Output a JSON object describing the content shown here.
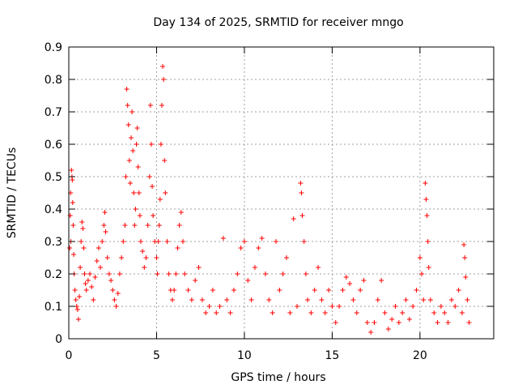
{
  "chart_data": {
    "type": "scatter",
    "title": "Day 134 of 2025, SRMTID for receiver mngo",
    "xlabel": "GPS time / hours",
    "ylabel": "SRMTID / TECUs",
    "xlim": [
      0,
      24.2
    ],
    "ylim": [
      0,
      0.9
    ],
    "x_ticks": [
      0,
      5,
      10,
      15,
      20
    ],
    "x_tick_labels": [
      "0",
      "5",
      "10",
      "15",
      "20"
    ],
    "y_ticks": [
      0,
      0.1,
      0.2,
      0.3,
      0.4,
      0.5,
      0.6,
      0.7,
      0.8,
      0.9
    ],
    "y_tick_labels": [
      "0",
      "0.1",
      "0.2",
      "0.3",
      "0.4",
      "0.5",
      "0.6",
      "0.7",
      "0.8",
      "0.9"
    ],
    "grid": true,
    "marker": "+",
    "color": "#ff0000",
    "series": [
      {
        "name": "SRMTID",
        "points": [
          [
            0.05,
            0.28
          ],
          [
            0.08,
            0.38
          ],
          [
            0.1,
            0.45
          ],
          [
            0.12,
            0.3
          ],
          [
            0.15,
            0.52
          ],
          [
            0.18,
            0.5
          ],
          [
            0.2,
            0.49
          ],
          [
            0.22,
            0.42
          ],
          [
            0.25,
            0.35
          ],
          [
            0.28,
            0.26
          ],
          [
            0.3,
            0.2
          ],
          [
            0.35,
            0.15
          ],
          [
            0.4,
            0.12
          ],
          [
            0.45,
            0.1
          ],
          [
            0.5,
            0.09
          ],
          [
            0.55,
            0.06
          ],
          [
            0.6,
            0.13
          ],
          [
            0.65,
            0.22
          ],
          [
            0.7,
            0.3
          ],
          [
            0.75,
            0.36
          ],
          [
            0.8,
            0.34
          ],
          [
            0.85,
            0.28
          ],
          [
            0.9,
            0.2
          ],
          [
            0.95,
            0.17
          ],
          [
            1.0,
            0.15
          ],
          [
            1.1,
            0.18
          ],
          [
            1.2,
            0.2
          ],
          [
            1.3,
            0.16
          ],
          [
            1.4,
            0.12
          ],
          [
            1.5,
            0.19
          ],
          [
            1.6,
            0.24
          ],
          [
            1.7,
            0.28
          ],
          [
            1.8,
            0.22
          ],
          [
            1.9,
            0.3
          ],
          [
            2.0,
            0.35
          ],
          [
            2.05,
            0.39
          ],
          [
            2.1,
            0.33
          ],
          [
            2.2,
            0.25
          ],
          [
            2.3,
            0.2
          ],
          [
            2.4,
            0.18
          ],
          [
            2.5,
            0.15
          ],
          [
            2.6,
            0.12
          ],
          [
            2.7,
            0.1
          ],
          [
            2.8,
            0.14
          ],
          [
            2.9,
            0.2
          ],
          [
            3.0,
            0.25
          ],
          [
            3.1,
            0.3
          ],
          [
            3.2,
            0.35
          ],
          [
            3.25,
            0.5
          ],
          [
            3.3,
            0.77
          ],
          [
            3.35,
            0.72
          ],
          [
            3.4,
            0.66
          ],
          [
            3.45,
            0.55
          ],
          [
            3.5,
            0.48
          ],
          [
            3.55,
            0.62
          ],
          [
            3.6,
            0.7
          ],
          [
            3.65,
            0.58
          ],
          [
            3.7,
            0.45
          ],
          [
            3.75,
            0.35
          ],
          [
            3.8,
            0.4
          ],
          [
            3.85,
            0.6
          ],
          [
            3.9,
            0.65
          ],
          [
            3.95,
            0.53
          ],
          [
            4.0,
            0.45
          ],
          [
            4.05,
            0.38
          ],
          [
            4.1,
            0.3
          ],
          [
            4.2,
            0.27
          ],
          [
            4.3,
            0.22
          ],
          [
            4.4,
            0.25
          ],
          [
            4.5,
            0.35
          ],
          [
            4.6,
            0.5
          ],
          [
            4.65,
            0.72
          ],
          [
            4.7,
            0.6
          ],
          [
            4.75,
            0.47
          ],
          [
            4.8,
            0.38
          ],
          [
            4.9,
            0.3
          ],
          [
            5.0,
            0.25
          ],
          [
            5.05,
            0.2
          ],
          [
            5.1,
            0.3
          ],
          [
            5.15,
            0.35
          ],
          [
            5.2,
            0.43
          ],
          [
            5.25,
            0.6
          ],
          [
            5.3,
            0.72
          ],
          [
            5.35,
            0.84
          ],
          [
            5.4,
            0.8
          ],
          [
            5.45,
            0.55
          ],
          [
            5.5,
            0.45
          ],
          [
            5.6,
            0.3
          ],
          [
            5.7,
            0.2
          ],
          [
            5.8,
            0.15
          ],
          [
            5.9,
            0.12
          ],
          [
            6.0,
            0.15
          ],
          [
            6.1,
            0.2
          ],
          [
            6.2,
            0.28
          ],
          [
            6.3,
            0.35
          ],
          [
            6.4,
            0.39
          ],
          [
            6.5,
            0.3
          ],
          [
            6.6,
            0.2
          ],
          [
            6.8,
            0.15
          ],
          [
            7.0,
            0.12
          ],
          [
            7.2,
            0.18
          ],
          [
            7.4,
            0.22
          ],
          [
            7.6,
            0.12
          ],
          [
            7.8,
            0.08
          ],
          [
            8.0,
            0.1
          ],
          [
            8.2,
            0.15
          ],
          [
            8.4,
            0.08
          ],
          [
            8.6,
            0.1
          ],
          [
            8.8,
            0.31
          ],
          [
            9.0,
            0.12
          ],
          [
            9.2,
            0.08
          ],
          [
            9.4,
            0.15
          ],
          [
            9.6,
            0.2
          ],
          [
            9.8,
            0.28
          ],
          [
            10.0,
            0.3
          ],
          [
            10.2,
            0.18
          ],
          [
            10.4,
            0.12
          ],
          [
            10.6,
            0.22
          ],
          [
            10.8,
            0.28
          ],
          [
            11.0,
            0.31
          ],
          [
            11.2,
            0.2
          ],
          [
            11.4,
            0.12
          ],
          [
            11.6,
            0.08
          ],
          [
            11.8,
            0.3
          ],
          [
            12.0,
            0.15
          ],
          [
            12.2,
            0.2
          ],
          [
            12.4,
            0.25
          ],
          [
            12.6,
            0.08
          ],
          [
            12.8,
            0.37
          ],
          [
            13.0,
            0.1
          ],
          [
            13.2,
            0.48
          ],
          [
            13.25,
            0.45
          ],
          [
            13.3,
            0.38
          ],
          [
            13.4,
            0.3
          ],
          [
            13.5,
            0.2
          ],
          [
            13.6,
            0.12
          ],
          [
            13.8,
            0.08
          ],
          [
            14.0,
            0.15
          ],
          [
            14.2,
            0.22
          ],
          [
            14.4,
            0.12
          ],
          [
            14.6,
            0.08
          ],
          [
            14.8,
            0.15
          ],
          [
            15.0,
            0.1
          ],
          [
            15.2,
            0.05
          ],
          [
            15.4,
            0.1
          ],
          [
            15.6,
            0.15
          ],
          [
            15.8,
            0.19
          ],
          [
            16.0,
            0.17
          ],
          [
            16.2,
            0.12
          ],
          [
            16.4,
            0.08
          ],
          [
            16.6,
            0.15
          ],
          [
            16.8,
            0.18
          ],
          [
            17.0,
            0.05
          ],
          [
            17.2,
            0.02
          ],
          [
            17.4,
            0.05
          ],
          [
            17.6,
            0.12
          ],
          [
            17.8,
            0.18
          ],
          [
            18.0,
            0.08
          ],
          [
            18.2,
            0.03
          ],
          [
            18.4,
            0.06
          ],
          [
            18.6,
            0.1
          ],
          [
            18.8,
            0.05
          ],
          [
            19.0,
            0.08
          ],
          [
            19.2,
            0.12
          ],
          [
            19.4,
            0.06
          ],
          [
            19.6,
            0.1
          ],
          [
            19.8,
            0.15
          ],
          [
            20.0,
            0.25
          ],
          [
            20.1,
            0.2
          ],
          [
            20.2,
            0.12
          ],
          [
            20.3,
            0.48
          ],
          [
            20.35,
            0.43
          ],
          [
            20.4,
            0.38
          ],
          [
            20.45,
            0.3
          ],
          [
            20.5,
            0.22
          ],
          [
            20.6,
            0.12
          ],
          [
            20.8,
            0.08
          ],
          [
            21.0,
            0.05
          ],
          [
            21.2,
            0.1
          ],
          [
            21.4,
            0.08
          ],
          [
            21.6,
            0.05
          ],
          [
            21.8,
            0.12
          ],
          [
            22.0,
            0.1
          ],
          [
            22.2,
            0.15
          ],
          [
            22.4,
            0.08
          ],
          [
            22.5,
            0.29
          ],
          [
            22.55,
            0.25
          ],
          [
            22.6,
            0.19
          ],
          [
            22.7,
            0.12
          ],
          [
            22.8,
            0.05
          ]
        ]
      }
    ]
  }
}
